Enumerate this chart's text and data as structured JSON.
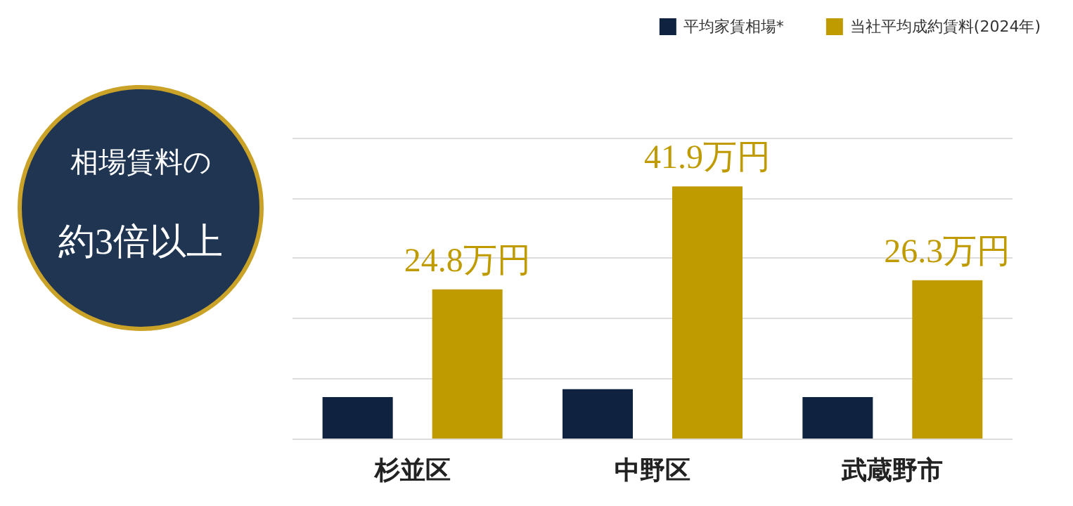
{
  "chart_data": {
    "type": "bar",
    "categories": [
      "杉並区",
      "中野区",
      "武蔵野市"
    ],
    "series": [
      {
        "name": "平均家賃相場*",
        "color": "#0f2340",
        "values": [
          6.9,
          8.2,
          6.9
        ]
      },
      {
        "name": "当社平均成約賃料(2024年)",
        "color": "#bf9b00",
        "values": [
          24.8,
          41.9,
          26.3
        ],
        "value_labels": [
          "24.8万円",
          "41.9万円",
          "26.3万円"
        ]
      }
    ],
    "ylim": [
      0,
      50
    ],
    "yticks": [
      {
        "value": 0,
        "label": null
      },
      {
        "value": 10,
        "label": null
      },
      {
        "value": 20,
        "label": null
      },
      {
        "value": 30,
        "label": null
      },
      {
        "value": 40,
        "label": null
      },
      {
        "value": 50,
        "label": null
      }
    ],
    "grid": "y",
    "legend": "top right",
    "tick_labels": "x",
    "annotations": [
      "相場賃料の",
      "約3倍以上"
    ]
  }
}
